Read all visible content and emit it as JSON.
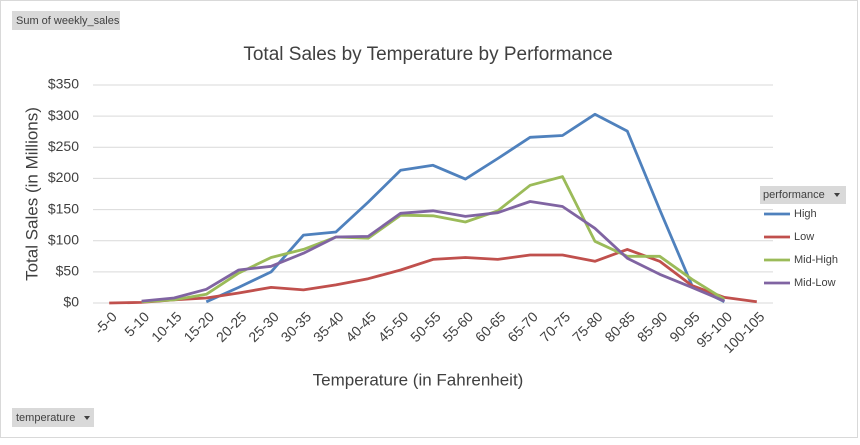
{
  "chart_data": {
    "type": "line",
    "field_button": "Sum of weekly_sales",
    "axis_field_button": "temperature",
    "title": "Total Sales by Temperature by Performance",
    "y_label": "Total Sales (in Millions)",
    "x_label": "Temperature (in Fahrenheit)",
    "legend_title": "performance",
    "legend": "right",
    "grid": true,
    "categories": [
      "-5-0",
      "5-10",
      "10-15",
      "15-20",
      "20-25",
      "25-30",
      "30-35",
      "35-40",
      "40-45",
      "45-50",
      "50-55",
      "55-60",
      "60-65",
      "65-70",
      "70-75",
      "75-80",
      "80-85",
      "85-90",
      "90-95",
      "95-100",
      "100-105"
    ],
    "ylim": [
      0,
      350
    ],
    "yticks": [
      {
        "value": 0,
        "label": "$0"
      },
      {
        "value": 50,
        "label": "$50"
      },
      {
        "value": 100,
        "label": "$100"
      },
      {
        "value": 150,
        "label": "$150"
      },
      {
        "value": 200,
        "label": "$200"
      },
      {
        "value": 250,
        "label": "$250"
      },
      {
        "value": 300,
        "label": "$300"
      },
      {
        "value": 350,
        "label": "$350"
      }
    ],
    "series": [
      {
        "name": "High",
        "color": "#4f81bd",
        "values": [
          null,
          null,
          null,
          2,
          25,
          50,
          109,
          114,
          162,
          213,
          221,
          199,
          232,
          266,
          269,
          303,
          276,
          150,
          28,
          2,
          null
        ]
      },
      {
        "name": "Low",
        "color": "#c0504d",
        "values": [
          0,
          1,
          5,
          8,
          16,
          25,
          21,
          29,
          39,
          53,
          70,
          73,
          70,
          77,
          77,
          67,
          86,
          67,
          28,
          9,
          2
        ]
      },
      {
        "name": "Mid-High",
        "color": "#9bbb59",
        "values": [
          null,
          2,
          5,
          14,
          48,
          73,
          86,
          106,
          104,
          141,
          140,
          130,
          148,
          189,
          203,
          99,
          75,
          75,
          38,
          6,
          null
        ]
      },
      {
        "name": "Mid-Low",
        "color": "#8064a2",
        "values": [
          null,
          3,
          8,
          22,
          53,
          59,
          80,
          106,
          107,
          144,
          148,
          139,
          145,
          163,
          155,
          120,
          72,
          46,
          25,
          3,
          null
        ]
      }
    ]
  }
}
